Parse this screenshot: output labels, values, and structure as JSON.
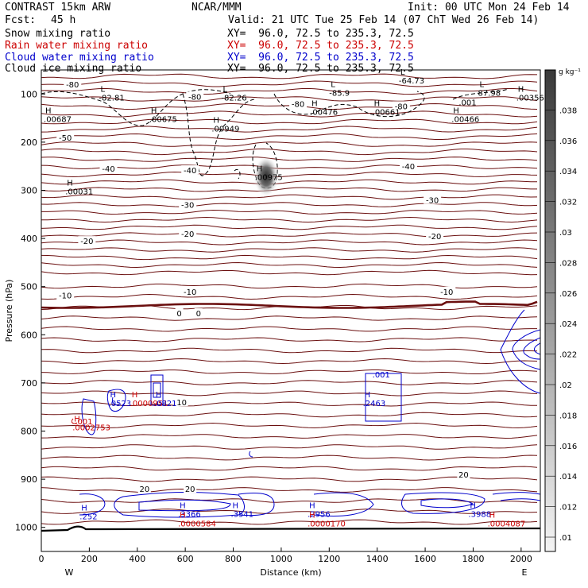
{
  "header": {
    "model": "CONTRAST 15km ARW",
    "center": "NCAR/MMM",
    "init": "Init: 00 UTC Mon 24 Feb 14",
    "fcst_label": "Fcst:",
    "fcst_value": "45 h",
    "valid": "Valid: 21 UTC Tue 25 Feb 14 (07 ChT Wed 26 Feb 14)",
    "fields": [
      {
        "name": "Snow mixing ratio",
        "xy": "XY=  96.0, 72.5 to 235.3, 72.5",
        "color": "#000000"
      },
      {
        "name": "Rain water mixing ratio",
        "xy": "XY=  96.0, 72.5 to 235.3, 72.5",
        "color": "#cc0000"
      },
      {
        "name": "Cloud water mixing ratio",
        "xy": "XY=  96.0, 72.5 to 235.3, 72.5",
        "color": "#0000cc"
      },
      {
        "name": "Cloud ice mixing ratio",
        "xy": "XY=  96.0, 72.5 to 235.3, 72.5",
        "color": "#000000"
      }
    ]
  },
  "colorbar": {
    "unit": "g kg⁻¹",
    "ticks": [
      ".01",
      ".012",
      ".014",
      ".016",
      ".018",
      ".02",
      ".022",
      ".024",
      ".026",
      ".028",
      ".03",
      ".032",
      ".034",
      ".036",
      ".038"
    ]
  },
  "colors": {
    "temperature_contour": "#6b0f0f",
    "cloud_water": "#0000cc",
    "rain_water": "#cc0000",
    "cloud_ice": "#000000"
  },
  "chart_data": {
    "type": "contour",
    "xlabel": "Distance (km)",
    "ylabel": "Pressure (hPa)",
    "xlim": [
      0,
      2080
    ],
    "ylim": [
      1050,
      50
    ],
    "x_ticks": [
      0,
      200,
      400,
      600,
      800,
      1000,
      1200,
      1400,
      1600,
      1800,
      2000
    ],
    "y_ticks": [
      100,
      200,
      300,
      400,
      500,
      600,
      700,
      800,
      900,
      1000
    ],
    "x_end_labels": {
      "left": "W",
      "right": "E"
    },
    "temperature_labels": [
      {
        "text": "-80",
        "x": 130,
        "p": 80
      },
      {
        "text": "-80",
        "x": 640,
        "p": 105
      },
      {
        "text": "-80",
        "x": 1070,
        "p": 120
      },
      {
        "text": "-80",
        "x": 1500,
        "p": 125
      },
      {
        "text": "-50",
        "x": 100,
        "p": 190
      },
      {
        "text": "-40",
        "x": 280,
        "p": 255
      },
      {
        "text": "-40",
        "x": 620,
        "p": 258
      },
      {
        "text": "-40",
        "x": 1530,
        "p": 250
      },
      {
        "text": "-30",
        "x": 610,
        "p": 330
      },
      {
        "text": "-30",
        "x": 1630,
        "p": 320
      },
      {
        "text": "-20",
        "x": 190,
        "p": 405
      },
      {
        "text": "-20",
        "x": 610,
        "p": 390
      },
      {
        "text": "-20",
        "x": 1640,
        "p": 395
      },
      {
        "text": "-10",
        "x": 100,
        "p": 518
      },
      {
        "text": "-10",
        "x": 620,
        "p": 510
      },
      {
        "text": "-10",
        "x": 1690,
        "p": 510
      },
      {
        "text": "0",
        "x": 575,
        "p": 555
      },
      {
        "text": "0",
        "x": 655,
        "p": 555
      },
      {
        "text": "10",
        "x": 585,
        "p": 740
      },
      {
        "text": "20",
        "x": 430,
        "p": 920
      },
      {
        "text": "20",
        "x": 620,
        "p": 920
      },
      {
        "text": "20",
        "x": 1760,
        "p": 890
      }
    ],
    "extrema_labels": [
      {
        "mark": "L",
        "value": "-82.81",
        "x": 240,
        "p": 105,
        "color": "#000000"
      },
      {
        "mark": "L",
        "value": "-82.26",
        "x": 750,
        "p": 105,
        "color": "#000000"
      },
      {
        "mark": "L",
        "value": "-85.9",
        "x": 1200,
        "p": 95,
        "color": "#000000"
      },
      {
        "mark": "L",
        "value": "-64.73",
        "x": 1490,
        "p": 70,
        "color": "#000000"
      },
      {
        "mark": "L",
        "value": "87.98",
        "x": 1820,
        "p": 95,
        "color": "#000000"
      },
      {
        "mark": "H",
        "value": ".00687",
        "x": 10,
        "p": 150,
        "color": "#000000"
      },
      {
        "mark": "H",
        "value": ".00675",
        "x": 450,
        "p": 150,
        "color": "#000000"
      },
      {
        "mark": "H",
        "value": ".00949",
        "x": 710,
        "p": 170,
        "color": "#000000"
      },
      {
        "mark": "H",
        "value": ".00476",
        "x": 1120,
        "p": 135,
        "color": "#000000"
      },
      {
        "mark": "H",
        "value": ".00661",
        "x": 1380,
        "p": 135,
        "color": "#000000"
      },
      {
        "mark": "",
        "value": ".001",
        "x": 1740,
        "p": 115,
        "color": "#000000"
      },
      {
        "mark": "H",
        "value": ".00466",
        "x": 1710,
        "p": 150,
        "color": "#000000"
      },
      {
        "mark": "H",
        "value": ".00356",
        "x": 1980,
        "p": 105,
        "color": "#000000"
      },
      {
        "mark": "H",
        "value": ".00975",
        "x": 890,
        "p": 270,
        "color": "#000000"
      },
      {
        "mark": "H",
        "value": ".00031",
        "x": 100,
        "p": 300,
        "color": "#000000"
      },
      {
        "mark": "H",
        "value": ".0523",
        "x": 280,
        "p": 740,
        "color": "#0000cc"
      },
      {
        "mark": "H",
        "value": ".0000951",
        "x": 370,
        "p": 740,
        "color": "#cc0000"
      },
      {
        "mark": "H",
        "value": ".0821",
        "x": 470,
        "p": 740,
        "color": "#0000cc"
      },
      {
        "mark": "H",
        "value": ".2463",
        "x": 1340,
        "p": 740,
        "color": "#0000cc"
      },
      {
        "mark": "",
        "value": ".001",
        "x": 1380,
        "p": 680,
        "color": "#0000cc"
      },
      {
        "mark": "H",
        "value": ".0002753",
        "x": 130,
        "p": 790,
        "color": "#cc0000"
      },
      {
        "mark": "",
        "value": ".001",
        "x": 140,
        "p": 778,
        "color": "#cc0000"
      },
      {
        "mark": "H",
        "value": ".252",
        "x": 160,
        "p": 975,
        "color": "#0000cc"
      },
      {
        "mark": "H",
        "value": ".3366",
        "x": 570,
        "p": 970,
        "color": "#0000cc"
      },
      {
        "mark": "H",
        "value": ".0000584",
        "x": 570,
        "p": 990,
        "color": "#cc0000"
      },
      {
        "mark": "H",
        "value": ".3541",
        "x": 790,
        "p": 970,
        "color": "#0000cc"
      },
      {
        "mark": "H",
        "value": ".2956",
        "x": 1110,
        "p": 970,
        "color": "#0000cc"
      },
      {
        "mark": "H",
        "value": ".0000170",
        "x": 1110,
        "p": 990,
        "color": "#cc0000"
      },
      {
        "mark": "H",
        "value": ".3988",
        "x": 1780,
        "p": 970,
        "color": "#0000cc"
      },
      {
        "mark": "H",
        "value": ".0004087",
        "x": 1860,
        "p": 990,
        "color": "#cc0000"
      }
    ],
    "shaded_maximum": {
      "field": "snow mixing ratio",
      "x": 950,
      "p": 270
    }
  }
}
